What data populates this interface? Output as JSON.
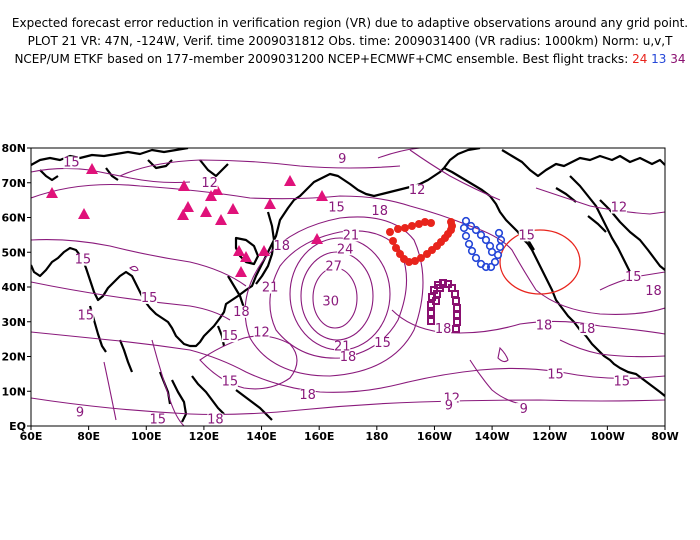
{
  "header": {
    "line1": "Expected forecast error reduction in verification region (VR) due to adaptive observations around any grid point.",
    "line2": "PLOT 21 VR: 47N, -124W, Verif. time 2009031812 Obs. time: 2009031400 (VR radius: 1000km) Norm: u,v,T",
    "line3_prefix": "NCEP/UM ETKF based on 177-member 2009031200 NCEP+ECMWF+CMC ensemble. Best flight tracks:",
    "track_a": "24",
    "track_b": "13",
    "track_c": "34"
  },
  "colors": {
    "contour": "#8a1a7c",
    "track_24": "#e8241c",
    "track_13": "#2547d8",
    "track_34": "#8a1070",
    "triangles": "#e0127a",
    "vr_circle": "#e8241c"
  },
  "map": {
    "lon_range": [
      60,
      280
    ],
    "lat_range": [
      0,
      80
    ],
    "vr_center": {
      "lat": 47,
      "lon": 236
    },
    "x_ticks": [
      "60E",
      "80E",
      "100E",
      "120E",
      "140E",
      "160E",
      "180",
      "160W",
      "140W",
      "120W",
      "100W",
      "80W"
    ],
    "y_ticks": [
      "EQ",
      "10N",
      "20N",
      "30N",
      "40N",
      "50N",
      "60N",
      "70N",
      "80N"
    ],
    "contour_labels": [
      {
        "text": "15",
        "lat": 75,
        "lon": 74
      },
      {
        "text": "9",
        "lat": 76,
        "lon": 168
      },
      {
        "text": "12",
        "lat": 69,
        "lon": 122
      },
      {
        "text": "12",
        "lat": 67,
        "lon": 194
      },
      {
        "text": "15",
        "lat": 62,
        "lon": 166
      },
      {
        "text": "18",
        "lat": 61,
        "lon": 181
      },
      {
        "text": "12",
        "lat": 62,
        "lon": 264
      },
      {
        "text": "15",
        "lat": 54,
        "lon": 232
      },
      {
        "text": "18",
        "lat": 51,
        "lon": 147
      },
      {
        "text": "21",
        "lat": 54,
        "lon": 171
      },
      {
        "text": "24",
        "lat": 50,
        "lon": 169
      },
      {
        "text": "27",
        "lat": 45,
        "lon": 165
      },
      {
        "text": "30",
        "lat": 35,
        "lon": 164
      },
      {
        "text": "21",
        "lat": 39,
        "lon": 143
      },
      {
        "text": "18",
        "lat": 32,
        "lon": 133
      },
      {
        "text": "15",
        "lat": 47,
        "lon": 78
      },
      {
        "text": "15",
        "lat": 36,
        "lon": 101
      },
      {
        "text": "15",
        "lat": 31,
        "lon": 79
      },
      {
        "text": "15",
        "lat": 25,
        "lon": 129
      },
      {
        "text": "12",
        "lat": 26,
        "lon": 140
      },
      {
        "text": "21",
        "lat": 22,
        "lon": 168
      },
      {
        "text": "18",
        "lat": 19,
        "lon": 170
      },
      {
        "text": "15",
        "lat": 23,
        "lon": 182
      },
      {
        "text": "18",
        "lat": 27,
        "lon": 203
      },
      {
        "text": "18",
        "lat": 28,
        "lon": 238
      },
      {
        "text": "18",
        "lat": 27,
        "lon": 253
      },
      {
        "text": "15",
        "lat": 14,
        "lon": 242
      },
      {
        "text": "15",
        "lat": 12,
        "lon": 129
      },
      {
        "text": "18",
        "lat": 8,
        "lon": 156
      },
      {
        "text": "15",
        "lat": 12,
        "lon": 265
      },
      {
        "text": "15",
        "lat": 42,
        "lon": 269
      },
      {
        "text": "18",
        "lat": 38,
        "lon": 276
      },
      {
        "text": "12",
        "lat": 7,
        "lon": 206
      },
      {
        "text": "9",
        "lat": 5,
        "lon": 205
      },
      {
        "text": "9",
        "lat": 4,
        "lon": 231
      },
      {
        "text": "9",
        "lat": 3,
        "lon": 77
      },
      {
        "text": "15",
        "lat": 1,
        "lon": 104
      },
      {
        "text": "18",
        "lat": 1,
        "lon": 124
      }
    ]
  }
}
